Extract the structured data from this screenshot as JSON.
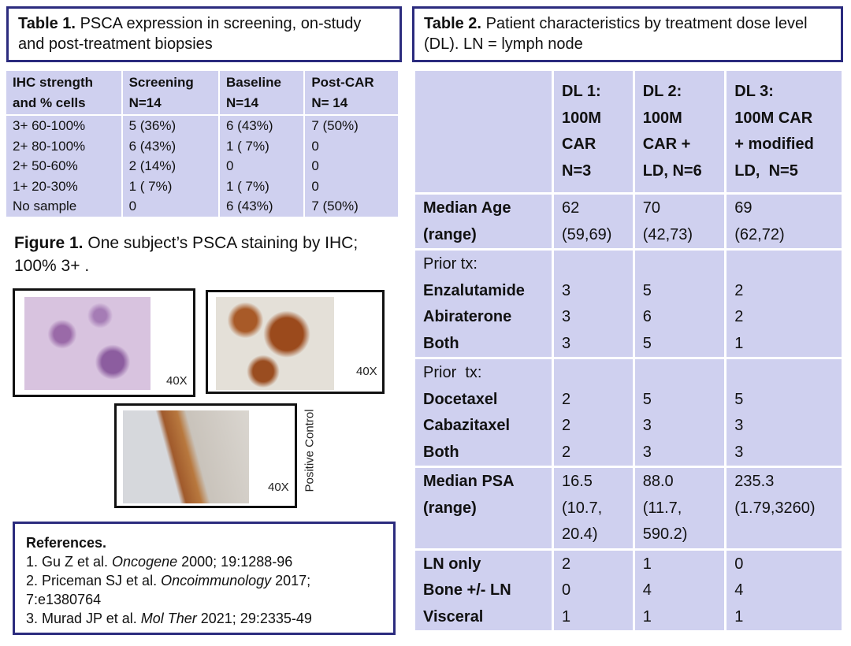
{
  "table1": {
    "label": "Table 1.",
    "caption": "PSCA expression in screening, on-study and post-treatment biopsies",
    "header": [
      [
        "IHC strength",
        "and % cells"
      ],
      [
        "Screening",
        "N=14"
      ],
      [
        "Baseline",
        "N=14"
      ],
      [
        "Post-CAR",
        "N= 14"
      ]
    ],
    "rows": [
      [
        "3+ 60-100%",
        "5 (36%)",
        "6 (43%)",
        "7 (50%)"
      ],
      [
        "2+ 80-100%",
        "6 (43%)",
        "1 ( 7%)",
        "0"
      ],
      [
        "2+ 50-60%",
        "2 (14%)",
        "0",
        "0"
      ],
      [
        "1+ 20-30%",
        "1 ( 7%)",
        "1 ( 7%)",
        "0"
      ],
      [
        "No sample",
        "0",
        "6 (43%)",
        "7 (50%)"
      ]
    ]
  },
  "figure1": {
    "label": "Figure 1.",
    "caption": "One subject’s PSCA staining by IHC; 100% 3+ .",
    "panels": [
      {
        "magnification": "40X"
      },
      {
        "magnification": "40X"
      },
      {
        "magnification": "40X",
        "side_label": "Positive Control"
      }
    ]
  },
  "references": {
    "title": "References.",
    "items": [
      {
        "text": "1. Gu Z et al. ",
        "journal": "Oncogene",
        "rest": " 2000; 19:1288-96"
      },
      {
        "text": "2. Priceman SJ et al. ",
        "journal": "Oncoimmunology",
        "rest": " 2017; 7:e1380764"
      },
      {
        "text": "3. Murad JP et al. ",
        "journal": "Mol Ther",
        "rest": " 2021; 29:2335-49"
      }
    ]
  },
  "table2": {
    "label": "Table 2.",
    "caption": "Patient characteristics by treatment dose level (DL). LN = lymph node",
    "header": [
      [
        "DL 1:",
        "100M",
        "CAR",
        "N=3"
      ],
      [
        "DL 2:",
        "100M",
        "CAR +",
        "LD, N=6"
      ],
      [
        "DL 3:",
        "100M CAR",
        "+ modified",
        "LD,  N=5"
      ]
    ],
    "groups": [
      {
        "rows": [
          {
            "label": [
              "Median Age",
              "(range)"
            ],
            "cells": [
              [
                "62",
                "(59,69)"
              ],
              [
                "70",
                "(42,73)"
              ],
              [
                "69",
                "(62,72)"
              ]
            ]
          }
        ]
      },
      {
        "heading": "Prior tx:",
        "rows": [
          {
            "label": [
              "Enzalutamide"
            ],
            "cells": [
              [
                "3"
              ],
              [
                "5"
              ],
              [
                "2"
              ]
            ]
          },
          {
            "label": [
              "Abiraterone"
            ],
            "cells": [
              [
                "3"
              ],
              [
                "6"
              ],
              [
                "2"
              ]
            ]
          },
          {
            "label": [
              "Both"
            ],
            "cells": [
              [
                "3"
              ],
              [
                "5"
              ],
              [
                "1"
              ]
            ]
          }
        ]
      },
      {
        "heading": "Prior  tx:",
        "rows": [
          {
            "label": [
              "Docetaxel"
            ],
            "cells": [
              [
                "2"
              ],
              [
                "5"
              ],
              [
                "5"
              ]
            ]
          },
          {
            "label": [
              "Cabazitaxel"
            ],
            "cells": [
              [
                "2"
              ],
              [
                "3"
              ],
              [
                "3"
              ]
            ]
          },
          {
            "label": [
              "Both"
            ],
            "cells": [
              [
                "2"
              ],
              [
                "3"
              ],
              [
                "3"
              ]
            ]
          }
        ]
      },
      {
        "rows": [
          {
            "label": [
              "Median PSA",
              "(range)"
            ],
            "cells": [
              [
                "16.5",
                "(10.7,",
                "20.4)"
              ],
              [
                "88.0",
                "(11.7,",
                "590.2)"
              ],
              [
                "235.3",
                "(1.79,3260)"
              ]
            ]
          }
        ]
      },
      {
        "rows": [
          {
            "label": [
              "LN only"
            ],
            "cells": [
              [
                "2"
              ],
              [
                "1"
              ],
              [
                "0"
              ]
            ]
          },
          {
            "label": [
              "Bone +/- LN"
            ],
            "cells": [
              [
                "0"
              ],
              [
                "4"
              ],
              [
                "4"
              ]
            ]
          },
          {
            "label": [
              "Visceral"
            ],
            "cells": [
              [
                "1"
              ],
              [
                "1"
              ],
              [
                "1"
              ]
            ]
          }
        ]
      }
    ]
  }
}
